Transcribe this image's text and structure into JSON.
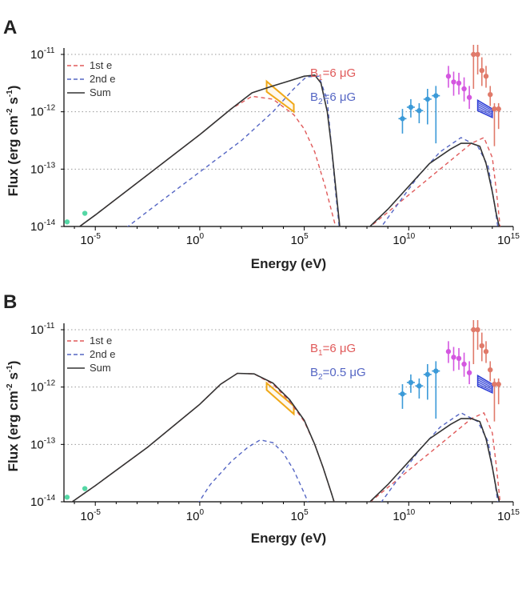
{
  "colors": {
    "first_e": "#e05a5a",
    "second_e": "#5566c4",
    "sum": "#333333",
    "optical": "#55d7a5",
    "xray": "#f0a818",
    "fermi": "#3b9ad8",
    "magic": "#d457e0",
    "hess": "#e07a6a",
    "hawc": "#2f3fd6",
    "grid": "#999999"
  },
  "chart_data": [
    {
      "panel": "A",
      "type": "line",
      "x_scale": "log",
      "y_scale": "log",
      "xlabel": "Energy (eV)",
      "ylabel": "Flux (erg cm-2 s-1)",
      "xlim_log10": [
        -6.5,
        15
      ],
      "ylim_log10": [
        -14,
        -11
      ],
      "x_ticks": [
        {
          "base": "10",
          "exp": "-5",
          "v": -5
        },
        {
          "base": "10",
          "exp": "0",
          "v": 0
        },
        {
          "base": "10",
          "exp": "5",
          "v": 5
        },
        {
          "base": "10",
          "exp": "10",
          "v": 10
        },
        {
          "base": "10",
          "exp": "15",
          "v": 15
        }
      ],
      "y_ticks": [
        {
          "base": "10",
          "exp": "-14",
          "v": -14
        },
        {
          "base": "10",
          "exp": "-13",
          "v": -13
        },
        {
          "base": "10",
          "exp": "-12",
          "v": -12
        },
        {
          "base": "10",
          "exp": "-11",
          "v": -11
        }
      ],
      "legend": [
        {
          "label": "1st e",
          "style": "dashed",
          "color_key": "first_e"
        },
        {
          "label": "2nd e",
          "style": "dashed",
          "color_key": "second_e"
        },
        {
          "label": "Sum",
          "style": "solid",
          "color_key": "sum"
        }
      ],
      "annotations": [
        {
          "main": "B",
          "sub": "1",
          "rest": "=6 μG",
          "color_key": "first_e"
        },
        {
          "main": "B",
          "sub": "2",
          "rest": "=6 μG",
          "color_key": "second_e"
        }
      ],
      "series": [
        {
          "name": "1st e",
          "color_key": "first_e",
          "style": "dashed",
          "x": [
            -6.5,
            -5,
            -2.5,
            0,
            1.5,
            2.5,
            3.5,
            4.5,
            5,
            5.5,
            6,
            6.5,
            7,
            7.5,
            8,
            9,
            10,
            11,
            12,
            13,
            13.6,
            14,
            14.2,
            14.4
          ],
          "y": [
            -14.2,
            -13.8,
            -13.1,
            -12.4,
            -11.95,
            -11.73,
            -11.78,
            -12.05,
            -12.3,
            -12.7,
            -13.3,
            -14.0,
            -14.5,
            -14.2,
            -14.05,
            -13.75,
            -13.45,
            -13.15,
            -12.85,
            -12.55,
            -12.45,
            -12.8,
            -13.4,
            -14.1
          ]
        },
        {
          "name": "2nd e",
          "color_key": "second_e",
          "style": "dashed",
          "x": [
            -3.8,
            -2,
            0,
            2,
            3.5,
            4.5,
            5.1,
            5.7,
            6.1,
            6.3,
            6.5,
            6.7,
            7,
            8,
            8.5,
            9.5,
            10.5,
            11.5,
            12.5,
            13.3,
            13.8,
            14.1,
            14.3
          ],
          "y": [
            -14.1,
            -13.6,
            -13.05,
            -12.5,
            -12.0,
            -11.6,
            -11.39,
            -11.38,
            -11.8,
            -12.6,
            -13.4,
            -14.1,
            -14.4,
            -14.4,
            -14.1,
            -13.6,
            -13.1,
            -12.7,
            -12.45,
            -12.6,
            -12.95,
            -13.6,
            -14.1
          ]
        },
        {
          "name": "Sum",
          "color_key": "sum",
          "style": "solid",
          "x": [
            -6.5,
            -5,
            -2.5,
            0,
            1.5,
            2.5,
            3.5,
            4.3,
            5,
            5.5,
            5.8,
            6.1,
            6.3,
            6.5,
            6.7,
            7,
            7.5,
            8,
            9,
            10,
            11,
            12,
            12.5,
            13,
            13.4,
            13.7,
            14,
            14.2,
            14.4
          ],
          "y": [
            -14.2,
            -13.8,
            -13.1,
            -12.4,
            -11.95,
            -11.67,
            -11.55,
            -11.46,
            -11.38,
            -11.36,
            -11.5,
            -12.0,
            -12.6,
            -13.3,
            -14.0,
            -14.5,
            -14.3,
            -14.05,
            -13.7,
            -13.3,
            -12.9,
            -12.65,
            -12.55,
            -12.55,
            -12.6,
            -12.9,
            -13.4,
            -13.8,
            -14.1
          ]
        }
      ],
      "data_points": [
        {
          "group": "optical",
          "color_key": "optical",
          "x": -6.35,
          "y": -13.92
        },
        {
          "group": "optical",
          "color_key": "optical",
          "x": -5.5,
          "y": -13.77
        },
        {
          "group": "fermi",
          "color_key": "fermi",
          "x": 9.7,
          "y": -12.12,
          "lo": -12.38,
          "hi": -11.95
        },
        {
          "group": "fermi",
          "color_key": "fermi",
          "x": 10.1,
          "y": -11.92,
          "lo": -12.1,
          "hi": -11.78
        },
        {
          "group": "fermi",
          "color_key": "fermi",
          "x": 10.5,
          "y": -11.98,
          "lo": -12.2,
          "hi": -11.85
        },
        {
          "group": "fermi",
          "color_key": "fermi",
          "x": 10.9,
          "y": -11.78,
          "lo": -12.22,
          "hi": -11.6
        },
        {
          "group": "fermi",
          "color_key": "fermi",
          "x": 11.3,
          "y": -11.72,
          "lo": -12.55,
          "hi": -11.55
        },
        {
          "group": "magic",
          "color_key": "magic",
          "x": 11.9,
          "y": -11.38,
          "lo": -11.58,
          "hi": -11.2
        },
        {
          "group": "magic",
          "color_key": "magic",
          "x": 12.15,
          "y": -11.48,
          "lo": -11.72,
          "hi": -11.3
        },
        {
          "group": "magic",
          "color_key": "magic",
          "x": 12.4,
          "y": -11.5,
          "lo": -11.7,
          "hi": -11.32
        },
        {
          "group": "magic",
          "color_key": "magic",
          "x": 12.65,
          "y": -11.6,
          "lo": -11.82,
          "hi": -11.4
        },
        {
          "group": "magic",
          "color_key": "magic",
          "x": 12.9,
          "y": -11.75,
          "lo": -11.95,
          "hi": -11.55
        },
        {
          "group": "hess",
          "color_key": "hess",
          "x": 13.1,
          "y": -11.0,
          "lo": -11.6,
          "hi": -10.8
        },
        {
          "group": "hess",
          "color_key": "hess",
          "x": 13.3,
          "y": -11.0,
          "lo": -11.35,
          "hi": -10.8
        },
        {
          "group": "hess",
          "color_key": "hess",
          "x": 13.5,
          "y": -11.28,
          "lo": -11.55,
          "hi": -11.05
        },
        {
          "group": "hess",
          "color_key": "hess",
          "x": 13.7,
          "y": -11.38,
          "lo": -11.58,
          "hi": -11.2
        },
        {
          "group": "hess",
          "color_key": "hess",
          "x": 13.9,
          "y": -11.7,
          "lo": -11.9,
          "hi": -11.55
        },
        {
          "group": "hess",
          "color_key": "hess",
          "x": 14.1,
          "y": -11.95,
          "lo": -12.6,
          "hi": -11.85
        },
        {
          "group": "hess",
          "color_key": "hess",
          "x": 14.3,
          "y": -11.95,
          "lo": -12.3,
          "hi": -11.85
        }
      ],
      "xray_bowtie": {
        "color_key": "xray",
        "x": [
          3.2,
          4.5
        ],
        "upper_y": [
          -11.47,
          -11.87
        ],
        "lower_y": [
          -11.65,
          -12.0
        ]
      },
      "hawc_bowtie": {
        "color_key": "hawc",
        "x": [
          13.3,
          14.0
        ],
        "upper_y": [
          -11.8,
          -11.95
        ],
        "lower_y": [
          -11.98,
          -12.1
        ]
      }
    },
    {
      "panel": "B",
      "type": "line",
      "x_scale": "log",
      "y_scale": "log",
      "xlabel": "Energy (eV)",
      "ylabel": "Flux (erg cm-2 s-1)",
      "xlim_log10": [
        -6.5,
        15
      ],
      "ylim_log10": [
        -14,
        -11
      ],
      "x_ticks": [
        {
          "base": "10",
          "exp": "-5",
          "v": -5
        },
        {
          "base": "10",
          "exp": "0",
          "v": 0
        },
        {
          "base": "10",
          "exp": "5",
          "v": 5
        },
        {
          "base": "10",
          "exp": "10",
          "v": 10
        },
        {
          "base": "10",
          "exp": "15",
          "v": 15
        }
      ],
      "y_ticks": [
        {
          "base": "10",
          "exp": "-14",
          "v": -14
        },
        {
          "base": "10",
          "exp": "-13",
          "v": -13
        },
        {
          "base": "10",
          "exp": "-12",
          "v": -12
        },
        {
          "base": "10",
          "exp": "-11",
          "v": -11
        }
      ],
      "legend": [
        {
          "label": "1st e",
          "style": "dashed",
          "color_key": "first_e"
        },
        {
          "label": "2nd e",
          "style": "dashed",
          "color_key": "second_e"
        },
        {
          "label": "Sum",
          "style": "solid",
          "color_key": "sum"
        }
      ],
      "annotations": [
        {
          "main": "B",
          "sub": "1",
          "rest": "=6 μG",
          "color_key": "first_e"
        },
        {
          "main": "B",
          "sub": "2",
          "rest": "=0.5 μG",
          "color_key": "second_e"
        }
      ],
      "series": [
        {
          "name": "1st e",
          "color_key": "first_e",
          "style": "dashed",
          "x": [
            -6.5,
            -5,
            -2.5,
            0,
            1,
            1.8,
            2.6,
            3.5,
            4.3,
            5,
            5.5,
            5.9,
            6.3,
            6.6,
            7,
            8,
            9,
            10,
            11,
            12,
            13,
            13.6,
            14,
            14.2,
            14.4
          ],
          "y": [
            -14.1,
            -13.72,
            -13.05,
            -12.3,
            -11.95,
            -11.76,
            -11.77,
            -11.95,
            -12.25,
            -12.6,
            -13.0,
            -13.4,
            -13.85,
            -14.2,
            -14.5,
            -14.05,
            -13.75,
            -13.45,
            -13.15,
            -12.85,
            -12.55,
            -12.45,
            -12.8,
            -13.4,
            -14.1
          ]
        },
        {
          "name": "2nd e",
          "color_key": "second_e",
          "style": "dashed",
          "x": [
            -0.3,
            0.5,
            1.5,
            2.3,
            2.9,
            3.5,
            4,
            4.5,
            5.0,
            5.4,
            5.7,
            6.2,
            8,
            8.5,
            9.5,
            10.5,
            11.5,
            12.5,
            13.3,
            13.8,
            14.1,
            14.3
          ],
          "y": [
            -14.15,
            -13.7,
            -13.3,
            -13.05,
            -12.92,
            -12.97,
            -13.15,
            -13.45,
            -13.85,
            -14.2,
            -14.6,
            -14.8,
            -14.4,
            -14.1,
            -13.6,
            -13.1,
            -12.7,
            -12.45,
            -12.6,
            -12.95,
            -13.6,
            -14.1
          ]
        },
        {
          "name": "Sum",
          "color_key": "sum",
          "style": "solid",
          "x": [
            -6.5,
            -5,
            -2.5,
            0,
            1,
            1.8,
            2.6,
            3.5,
            4.3,
            5,
            5.5,
            5.9,
            6.3,
            6.6,
            7,
            7.5,
            8,
            9,
            10,
            11,
            12,
            12.5,
            13,
            13.4,
            13.7,
            14,
            14.2,
            14.4
          ],
          "y": [
            -14.1,
            -13.72,
            -13.05,
            -12.3,
            -11.95,
            -11.76,
            -11.77,
            -11.93,
            -12.22,
            -12.58,
            -13.0,
            -13.4,
            -13.85,
            -14.2,
            -14.5,
            -14.3,
            -14.05,
            -13.7,
            -13.3,
            -12.9,
            -12.65,
            -12.55,
            -12.55,
            -12.6,
            -12.9,
            -13.4,
            -13.8,
            -14.1
          ]
        }
      ],
      "data_points": [
        {
          "group": "optical",
          "color_key": "optical",
          "x": -6.35,
          "y": -13.92
        },
        {
          "group": "optical",
          "color_key": "optical",
          "x": -5.5,
          "y": -13.77
        },
        {
          "group": "fermi",
          "color_key": "fermi",
          "x": 9.7,
          "y": -12.12,
          "lo": -12.38,
          "hi": -11.95
        },
        {
          "group": "fermi",
          "color_key": "fermi",
          "x": 10.1,
          "y": -11.92,
          "lo": -12.1,
          "hi": -11.78
        },
        {
          "group": "fermi",
          "color_key": "fermi",
          "x": 10.5,
          "y": -11.98,
          "lo": -12.2,
          "hi": -11.85
        },
        {
          "group": "fermi",
          "color_key": "fermi",
          "x": 10.9,
          "y": -11.78,
          "lo": -12.22,
          "hi": -11.6
        },
        {
          "group": "fermi",
          "color_key": "fermi",
          "x": 11.3,
          "y": -11.72,
          "lo": -12.55,
          "hi": -11.55
        },
        {
          "group": "magic",
          "color_key": "magic",
          "x": 11.9,
          "y": -11.38,
          "lo": -11.58,
          "hi": -11.2
        },
        {
          "group": "magic",
          "color_key": "magic",
          "x": 12.15,
          "y": -11.48,
          "lo": -11.72,
          "hi": -11.3
        },
        {
          "group": "magic",
          "color_key": "magic",
          "x": 12.4,
          "y": -11.5,
          "lo": -11.7,
          "hi": -11.32
        },
        {
          "group": "magic",
          "color_key": "magic",
          "x": 12.65,
          "y": -11.6,
          "lo": -11.82,
          "hi": -11.4
        },
        {
          "group": "magic",
          "color_key": "magic",
          "x": 12.9,
          "y": -11.75,
          "lo": -11.95,
          "hi": -11.55
        },
        {
          "group": "hess",
          "color_key": "hess",
          "x": 13.1,
          "y": -11.0,
          "lo": -11.6,
          "hi": -10.8
        },
        {
          "group": "hess",
          "color_key": "hess",
          "x": 13.3,
          "y": -11.0,
          "lo": -11.35,
          "hi": -10.8
        },
        {
          "group": "hess",
          "color_key": "hess",
          "x": 13.5,
          "y": -11.28,
          "lo": -11.55,
          "hi": -11.05
        },
        {
          "group": "hess",
          "color_key": "hess",
          "x": 13.7,
          "y": -11.38,
          "lo": -11.58,
          "hi": -11.2
        },
        {
          "group": "hess",
          "color_key": "hess",
          "x": 13.9,
          "y": -11.7,
          "lo": -11.9,
          "hi": -11.55
        },
        {
          "group": "hess",
          "color_key": "hess",
          "x": 14.1,
          "y": -11.95,
          "lo": -12.6,
          "hi": -11.85
        },
        {
          "group": "hess",
          "color_key": "hess",
          "x": 14.3,
          "y": -11.95,
          "lo": -12.3,
          "hi": -11.85
        }
      ],
      "xray_bowtie": {
        "color_key": "xray",
        "x": [
          3.2,
          4.5
        ],
        "upper_y": [
          -11.93,
          -12.33
        ],
        "lower_y": [
          -12.05,
          -12.47
        ]
      },
      "hawc_bowtie": {
        "color_key": "hawc",
        "x": [
          13.3,
          14.0
        ],
        "upper_y": [
          -11.8,
          -11.95
        ],
        "lower_y": [
          -11.98,
          -12.1
        ]
      }
    }
  ]
}
